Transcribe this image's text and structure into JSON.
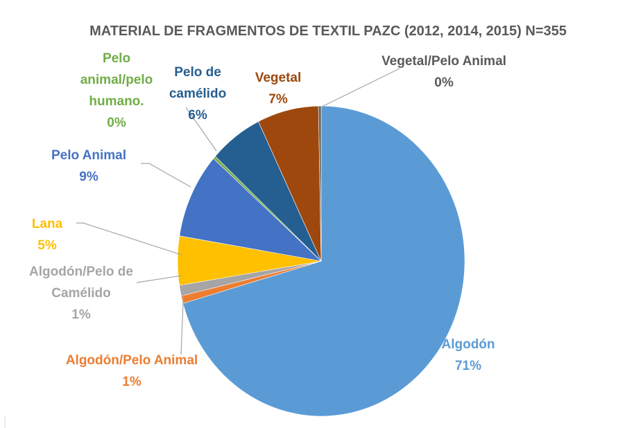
{
  "chart_data": {
    "type": "pie",
    "title": "MATERIAL DE FRAGMENTOS DE TEXTIL PAZC (2012, 2014, 2015) N=355",
    "categories": [
      "Algodón",
      "Algodón/Pelo Animal",
      "Algodón/Pelo de Camélido",
      "Lana",
      "Pelo Animal",
      "Pelo animal/pelo humano.",
      "Pelo de camélido",
      "Vegetal",
      "Vegetal/Pelo Animal"
    ],
    "values": [
      70.6,
      0.8,
      1.1,
      5.1,
      8.9,
      0.3,
      6.0,
      6.9,
      0.3
    ],
    "value_labels": [
      "71%",
      "1%",
      "1%",
      "5%",
      "9%",
      "0%",
      "6%",
      "7%",
      "0%"
    ],
    "colors": [
      "#5b9bd5",
      "#ed7d31",
      "#a5a5a5",
      "#ffc000",
      "#4472c4",
      "#70ad47",
      "#255e91",
      "#9e480e",
      "#636363"
    ]
  }
}
